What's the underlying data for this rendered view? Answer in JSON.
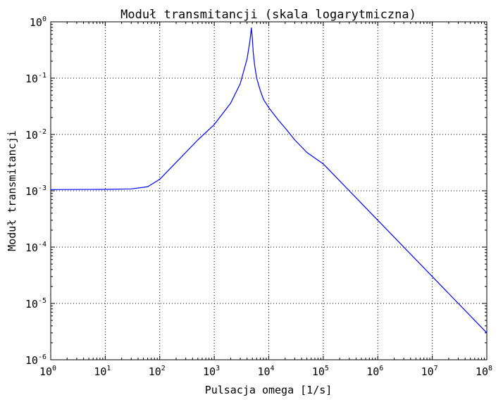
{
  "chart_data": {
    "type": "line",
    "title": "Moduł transmitancji (skala logarytmiczna)",
    "xlabel": "Pulsacja omega [1/s]",
    "ylabel": "Moduł transmitancji",
    "xscale": "log",
    "yscale": "log",
    "xlim": [
      1,
      100000000
    ],
    "ylim": [
      1e-06,
      1
    ],
    "grid": true,
    "x_ticks": [
      {
        "base": "10",
        "exp": "0"
      },
      {
        "base": "10",
        "exp": "1"
      },
      {
        "base": "10",
        "exp": "2"
      },
      {
        "base": "10",
        "exp": "3"
      },
      {
        "base": "10",
        "exp": "4"
      },
      {
        "base": "10",
        "exp": "5"
      },
      {
        "base": "10",
        "exp": "6"
      },
      {
        "base": "10",
        "exp": "7"
      },
      {
        "base": "10",
        "exp": "8"
      }
    ],
    "y_ticks": [
      {
        "base": "10",
        "exp": "-6"
      },
      {
        "base": "10",
        "exp": "-5"
      },
      {
        "base": "10",
        "exp": "-4"
      },
      {
        "base": "10",
        "exp": "-3"
      },
      {
        "base": "10",
        "exp": "-2"
      },
      {
        "base": "10",
        "exp": "-1"
      },
      {
        "base": "10",
        "exp": "0"
      }
    ],
    "series": [
      {
        "color": "#0000ff",
        "x": [
          1,
          10,
          30,
          60,
          100,
          200,
          500,
          1000,
          2000,
          3000,
          4000,
          4500,
          4800,
          5000,
          5200,
          5500,
          6000,
          7000,
          8000,
          10000,
          15000,
          20000,
          30000,
          50000,
          100000,
          1000000,
          10000000,
          100000000
        ],
        "y": [
          0.00105,
          0.00106,
          0.00108,
          0.00118,
          0.0016,
          0.0032,
          0.008,
          0.015,
          0.036,
          0.08,
          0.22,
          0.45,
          0.78,
          0.5,
          0.28,
          0.17,
          0.1,
          0.06,
          0.042,
          0.03,
          0.018,
          0.013,
          0.008,
          0.0048,
          0.003,
          0.0003,
          3e-05,
          3e-06
        ]
      }
    ]
  }
}
